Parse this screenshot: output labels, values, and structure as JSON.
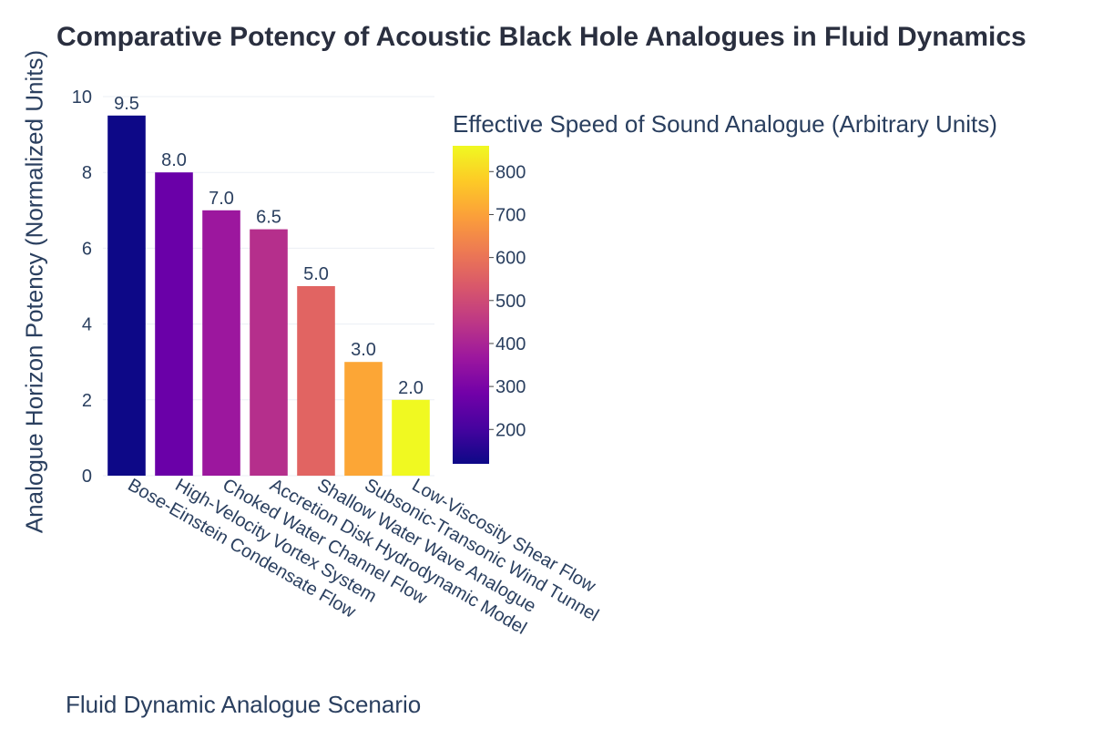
{
  "chart_data": {
    "type": "bar",
    "title": "Comparative Potency of Acoustic Black Hole Analogues in Fluid Dynamics",
    "xlabel": "Fluid Dynamic Analogue Scenario",
    "ylabel": "Analogue Horizon Potency (Normalized Units)",
    "ylim": [
      0,
      10
    ],
    "yticks": [
      0,
      2,
      4,
      6,
      8,
      10
    ],
    "categories": [
      "Bose-Einstein Condensate Flow",
      "High-Velocity Vortex System",
      "Choked Water Channel Flow",
      "Accretion Disk Hydrodynamic Model",
      "Shallow Water Wave Analogue",
      "Subsonic-Transonic Wind Tunnel",
      "Low-Viscosity Shear Flow"
    ],
    "values": [
      9.5,
      8.0,
      7.0,
      6.5,
      5.0,
      3.0,
      2.0
    ],
    "data_labels": [
      "9.5",
      "8.0",
      "7.0",
      "6.5",
      "5.0",
      "3.0",
      "2.0"
    ],
    "color_values": [
      120,
      280,
      350,
      400,
      550,
      700,
      860
    ],
    "colors": [
      "#0d0887",
      "#6a00a8",
      "#9c179e",
      "#b52f8c",
      "#e16462",
      "#fca636",
      "#f0f921"
    ],
    "colorbar": {
      "title": "Effective Speed of Sound Analogue (Arbitrary Units)",
      "range": [
        120,
        860
      ],
      "ticks": [
        200,
        300,
        400,
        500,
        600,
        700,
        800
      ],
      "colorscale": "Plasma"
    },
    "grid": true
  }
}
